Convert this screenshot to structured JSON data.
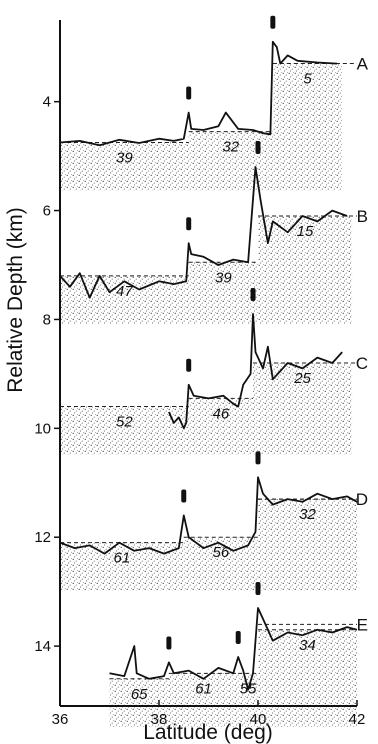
{
  "chart_data": {
    "type": "line",
    "xlabel": "Latitude (deg)",
    "ylabel": "Relative Depth (km)",
    "xlim": [
      36,
      42
    ],
    "ylim": [
      15.1,
      2.5
    ],
    "x_ticks": [
      "36",
      "38",
      "40",
      "42"
    ],
    "y_ticks": [
      "4",
      "6",
      "8",
      "10",
      "12",
      "14"
    ],
    "panels": [
      {
        "name": "A",
        "reference_depth": 3.3,
        "fracture_zones_deg": [
          38.6,
          40.3
        ],
        "profile": [
          [
            36.0,
            4.75
          ],
          [
            36.4,
            4.72
          ],
          [
            36.8,
            4.8
          ],
          [
            37.2,
            4.7
          ],
          [
            37.6,
            4.76
          ],
          [
            38.0,
            4.68
          ],
          [
            38.3,
            4.72
          ],
          [
            38.5,
            4.68
          ],
          [
            38.6,
            4.2
          ],
          [
            38.65,
            4.5
          ],
          [
            38.9,
            4.52
          ],
          [
            39.2,
            4.45
          ],
          [
            39.35,
            4.2
          ],
          [
            39.6,
            4.5
          ],
          [
            39.9,
            4.52
          ],
          [
            40.1,
            4.58
          ],
          [
            40.25,
            4.6
          ],
          [
            40.3,
            2.9
          ],
          [
            40.38,
            3.0
          ],
          [
            40.45,
            3.3
          ],
          [
            40.6,
            3.15
          ],
          [
            40.8,
            3.25
          ],
          [
            41.2,
            3.28
          ],
          [
            41.6,
            3.3
          ]
        ],
        "segments": [
          {
            "label": "39",
            "depth": 4.75,
            "x": [
              36.0,
              38.6
            ]
          },
          {
            "label": "32",
            "depth": 4.55,
            "x": [
              38.6,
              40.3
            ]
          },
          {
            "label": "5",
            "depth": 3.3,
            "x": [
              40.3,
              41.7
            ]
          }
        ]
      },
      {
        "name": "B",
        "reference_depth": 6.1,
        "fracture_zones_deg": [
          38.6,
          40.0
        ],
        "profile": [
          [
            36.0,
            7.2
          ],
          [
            36.2,
            7.4
          ],
          [
            36.4,
            7.15
          ],
          [
            36.6,
            7.6
          ],
          [
            36.8,
            7.2
          ],
          [
            37.0,
            7.5
          ],
          [
            37.3,
            7.3
          ],
          [
            37.6,
            7.45
          ],
          [
            38.0,
            7.3
          ],
          [
            38.3,
            7.35
          ],
          [
            38.55,
            7.3
          ],
          [
            38.6,
            6.6
          ],
          [
            38.65,
            6.8
          ],
          [
            38.9,
            6.85
          ],
          [
            39.2,
            7.0
          ],
          [
            39.5,
            6.9
          ],
          [
            39.8,
            6.95
          ],
          [
            39.95,
            5.2
          ],
          [
            40.05,
            5.8
          ],
          [
            40.2,
            6.6
          ],
          [
            40.3,
            6.2
          ],
          [
            40.6,
            6.4
          ],
          [
            40.9,
            6.1
          ],
          [
            41.2,
            6.2
          ],
          [
            41.5,
            6.0
          ],
          [
            41.8,
            6.1
          ]
        ],
        "segments": [
          {
            "label": "47",
            "depth": 7.2,
            "x": [
              36.0,
              38.6
            ]
          },
          {
            "label": "39",
            "depth": 6.95,
            "x": [
              38.6,
              40.0
            ]
          },
          {
            "label": "15",
            "depth": 6.1,
            "x": [
              40.0,
              41.9
            ]
          }
        ]
      },
      {
        "name": "C",
        "reference_depth": 8.8,
        "fracture_zones_deg": [
          38.6,
          39.9
        ],
        "profile": [
          [
            38.2,
            9.7
          ],
          [
            38.3,
            9.9
          ],
          [
            38.4,
            9.8
          ],
          [
            38.5,
            10.0
          ],
          [
            38.55,
            9.9
          ],
          [
            38.6,
            9.2
          ],
          [
            38.7,
            9.4
          ],
          [
            39.0,
            9.45
          ],
          [
            39.3,
            9.4
          ],
          [
            39.5,
            9.55
          ],
          [
            39.6,
            9.6
          ],
          [
            39.7,
            9.2
          ],
          [
            39.85,
            9.0
          ],
          [
            39.9,
            7.9
          ],
          [
            39.95,
            8.6
          ],
          [
            40.1,
            8.9
          ],
          [
            40.2,
            8.5
          ],
          [
            40.3,
            9.1
          ],
          [
            40.6,
            8.8
          ],
          [
            40.9,
            8.9
          ],
          [
            41.2,
            8.7
          ],
          [
            41.5,
            8.8
          ],
          [
            41.7,
            8.6
          ]
        ],
        "segments": [
          {
            "label": "52",
            "depth": 9.6,
            "x": [
              36.0,
              38.6
            ]
          },
          {
            "label": "46",
            "depth": 9.45,
            "x": [
              38.6,
              39.9
            ]
          },
          {
            "label": "25",
            "depth": 8.8,
            "x": [
              39.9,
              41.9
            ]
          }
        ]
      },
      {
        "name": "D",
        "reference_depth": 11.3,
        "fracture_zones_deg": [
          38.5,
          40.0
        ],
        "profile": [
          [
            36.0,
            12.1
          ],
          [
            36.3,
            12.2
          ],
          [
            36.6,
            12.15
          ],
          [
            36.9,
            12.3
          ],
          [
            37.2,
            12.1
          ],
          [
            37.5,
            12.25
          ],
          [
            37.8,
            12.2
          ],
          [
            38.1,
            12.3
          ],
          [
            38.4,
            12.2
          ],
          [
            38.5,
            11.6
          ],
          [
            38.6,
            12.0
          ],
          [
            38.9,
            12.2
          ],
          [
            39.2,
            12.1
          ],
          [
            39.5,
            12.25
          ],
          [
            39.8,
            12.15
          ],
          [
            39.95,
            11.9
          ],
          [
            40.0,
            10.9
          ],
          [
            40.1,
            11.2
          ],
          [
            40.3,
            11.4
          ],
          [
            40.6,
            11.3
          ],
          [
            40.9,
            11.35
          ],
          [
            41.2,
            11.2
          ],
          [
            41.5,
            11.3
          ],
          [
            41.8,
            11.25
          ],
          [
            42.0,
            11.35
          ]
        ],
        "segments": [
          {
            "label": "61",
            "depth": 12.1,
            "x": [
              36.0,
              38.5
            ]
          },
          {
            "label": "56",
            "depth": 12.0,
            "x": [
              38.5,
              40.0
            ]
          },
          {
            "label": "32",
            "depth": 11.3,
            "x": [
              40.0,
              42.0
            ]
          }
        ]
      },
      {
        "name": "E",
        "reference_depth": 13.6,
        "fracture_zones_deg": [
          38.2,
          39.6,
          40.0
        ],
        "profile": [
          [
            37.0,
            14.5
          ],
          [
            37.3,
            14.55
          ],
          [
            37.5,
            14.0
          ],
          [
            37.55,
            14.5
          ],
          [
            37.8,
            14.6
          ],
          [
            38.1,
            14.55
          ],
          [
            38.2,
            14.3
          ],
          [
            38.3,
            14.5
          ],
          [
            38.6,
            14.45
          ],
          [
            38.9,
            14.6
          ],
          [
            39.2,
            14.4
          ],
          [
            39.5,
            14.5
          ],
          [
            39.6,
            14.2
          ],
          [
            39.7,
            14.45
          ],
          [
            39.8,
            14.8
          ],
          [
            39.9,
            14.5
          ],
          [
            40.0,
            13.3
          ],
          [
            40.1,
            13.5
          ],
          [
            40.3,
            13.9
          ],
          [
            40.6,
            13.75
          ],
          [
            40.9,
            13.8
          ],
          [
            41.2,
            13.7
          ],
          [
            41.5,
            13.75
          ],
          [
            41.8,
            13.65
          ],
          [
            42.0,
            13.7
          ]
        ],
        "segments": [
          {
            "label": "65",
            "depth": 14.6,
            "x": [
              37.0,
              38.2
            ]
          },
          {
            "label": "61",
            "depth": 14.5,
            "x": [
              38.2,
              39.6
            ]
          },
          {
            "label": "55",
            "depth": 14.5,
            "x": [
              39.6,
              40.0
            ]
          },
          {
            "label": "34",
            "depth": 13.7,
            "x": [
              40.0,
              42.0
            ]
          }
        ]
      }
    ]
  }
}
